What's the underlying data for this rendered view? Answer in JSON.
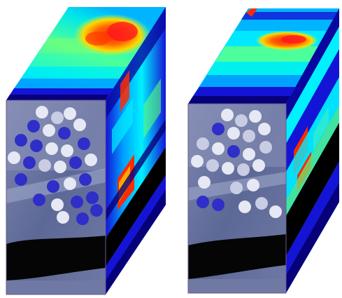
{
  "image": {
    "background": "#ffffff",
    "cubes": [
      {
        "id": "left",
        "front_palette": [
          "#5c6896",
          "#7f87b0",
          "#9ea6c8",
          "#4b5683",
          "#3a4470"
        ],
        "field_dark_color": "#2f2ec9",
        "field_light_color": "#e6e8f4",
        "river_color": "#050505",
        "top_palette": [
          "#2c2cf0",
          "#00b4ff",
          "#00f0f0",
          "#4cff9a",
          "#a6ff4c",
          "#ffd800",
          "#ff6a00",
          "#ff1a1a"
        ],
        "side_palette": [
          "#07007a",
          "#1414d6",
          "#00a2ff",
          "#00f0ff",
          "#5cff7a",
          "#ffe000",
          "#ff2a00",
          "#000000"
        ]
      },
      {
        "id": "right",
        "front_palette": [
          "#5c6896",
          "#7f87b0",
          "#9ea6c8",
          "#4b5683",
          "#3a4470"
        ],
        "field_dark_color": "#2f2ec9",
        "field_light_color": "#e6e8f4",
        "river_color": "#050505",
        "top_palette": [
          "#2c2cf0",
          "#00b4ff",
          "#00f0f0",
          "#4cff9a",
          "#a6ff4c",
          "#ffd800",
          "#ff6a00",
          "#ff1a1a"
        ],
        "side_palette": [
          "#07007a",
          "#1414d6",
          "#00a2ff",
          "#00f0ff",
          "#5cff7a",
          "#ffe000",
          "#ff2a00",
          "#000000"
        ]
      }
    ]
  }
}
